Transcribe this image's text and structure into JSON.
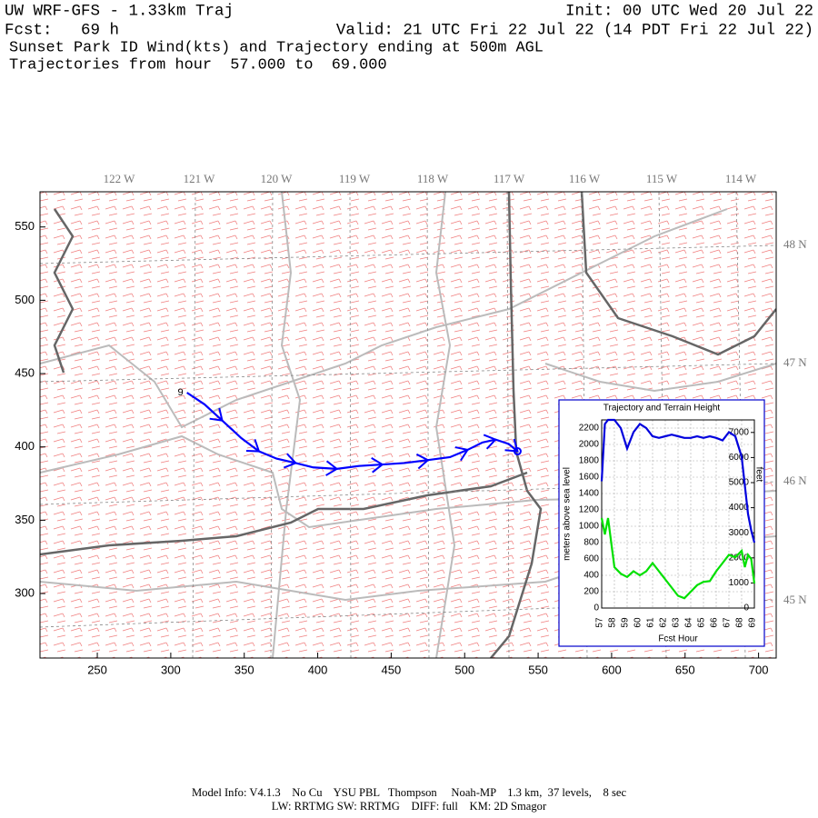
{
  "header": {
    "title": "UW WRF-GFS - 1.33km Traj",
    "init": "Init: 00 UTC Wed 20 Jul 22",
    "forecast": "Fcst:   69 h",
    "valid": "Valid: 21 UTC Fri 22 Jul 22 (14 PDT Fri 22 Jul 22)",
    "subtitle": "Sunset Park ID Wind(kts) and Trajectory ending at 500m AGL",
    "subtitle_color": "#f06060",
    "range": "Trajectories from hour  57.000 to  69.000",
    "range_color": "#0000ee"
  },
  "chart_data": [
    {
      "type": "trajectory",
      "color": "#0000ff",
      "start_label": "9",
      "x": [
        311,
        323,
        335,
        348,
        360,
        372,
        385,
        397,
        413,
        428,
        444,
        459,
        475,
        490,
        502,
        512,
        521,
        530,
        536
      ],
      "values": [
        437,
        429,
        418,
        406,
        397,
        392,
        389,
        386,
        385,
        387,
        388,
        389,
        391,
        393,
        398,
        403,
        405,
        402,
        397
      ],
      "xlim": [
        211,
        712
      ],
      "ylim": [
        256,
        574
      ],
      "xticks": [
        250,
        300,
        350,
        400,
        450,
        500,
        550,
        600,
        650,
        700
      ],
      "yticks": [
        300,
        350,
        400,
        450,
        500,
        550
      ],
      "lon_labels": [
        "122 W",
        "121 W",
        "120 W",
        "119 W",
        "118 W",
        "117 W",
        "116 W",
        "115 W",
        "114 W"
      ],
      "lat_labels": [
        "48 N",
        "47 N",
        "46 N",
        "45 N"
      ]
    },
    {
      "type": "line",
      "title": "Trajectory and Terrain Height",
      "x_label": "Fcst Hour",
      "y_label": "meters above sea level",
      "y2_label": "feet",
      "grid": true,
      "x": [
        57,
        57.25,
        57.5,
        58,
        58.5,
        59,
        59.5,
        60,
        60.5,
        61,
        61.5,
        62,
        62.5,
        63,
        63.5,
        64,
        64.5,
        65,
        65.5,
        66,
        66.5,
        67,
        67.5,
        68,
        68.25,
        68.5,
        68.75,
        69
      ],
      "series": [
        {
          "color": "#0000dd",
          "values": [
            1550,
            2250,
            2300,
            2300,
            2200,
            1950,
            2150,
            2250,
            2200,
            2100,
            2080,
            2100,
            2120,
            2100,
            2080,
            2080,
            2100,
            2080,
            2100,
            2080,
            2050,
            2150,
            2100,
            1850,
            1500,
            1150,
            950,
            800
          ]
        },
        {
          "color": "#00e000",
          "values": [
            1100,
            900,
            1100,
            500,
            420,
            380,
            450,
            400,
            450,
            550,
            450,
            350,
            250,
            150,
            120,
            200,
            280,
            320,
            330,
            450,
            550,
            650,
            620,
            700,
            500,
            650,
            600,
            300
          ]
        }
      ],
      "xlim": [
        57,
        69
      ],
      "xticks": [
        57,
        58,
        59,
        60,
        61,
        62,
        63,
        64,
        65,
        66,
        67,
        68,
        69
      ],
      "ylim": [
        0,
        2300
      ],
      "yticks": [
        0,
        200,
        400,
        600,
        800,
        1000,
        1200,
        1400,
        1600,
        1800,
        2000,
        2200
      ],
      "y2lim": [
        0,
        7500
      ],
      "y2ticks": [
        0,
        1000,
        2000,
        3000,
        4000,
        5000,
        6000,
        7000
      ]
    }
  ],
  "footer": {
    "line1": "Model Info: V4.1.3    No Cu    YSU PBL   Thompson     Noah-MP    1.3 km,  37 levels,    8 sec",
    "line2": "LW: RRTMG SW: RRTMG    DIFF: full    KM: 2D Smagor"
  }
}
